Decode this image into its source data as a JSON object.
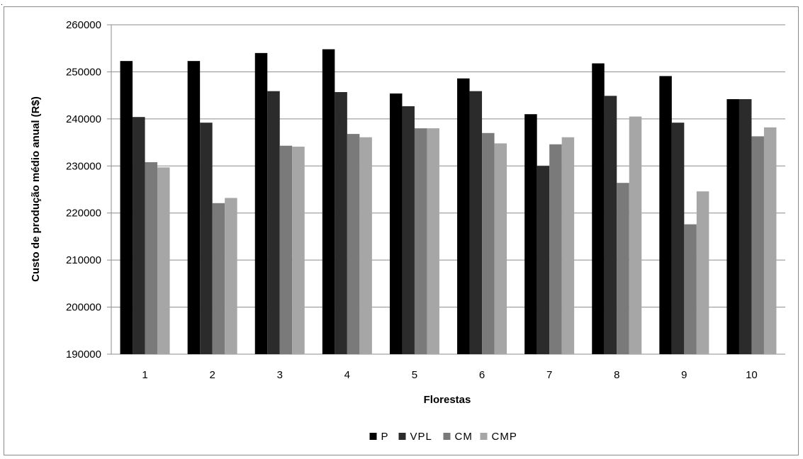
{
  "chart_data": {
    "type": "bar",
    "xlabel": "Florestas",
    "ylabel": "Custo de produção  médio anual (R$)",
    "categories": [
      "1",
      "2",
      "3",
      "4",
      "5",
      "6",
      "7",
      "8",
      "9",
      "10"
    ],
    "ylim": [
      190000,
      260000
    ],
    "yticks": [
      "190000",
      "200000",
      "210000",
      "220000",
      "230000",
      "240000",
      "250000",
      "260000"
    ],
    "grid": true,
    "legend_position": "bottom",
    "series": [
      {
        "name": "P",
        "color": "#000000",
        "values": [
          252300,
          252300,
          254000,
          254800,
          245400,
          248600,
          241000,
          251800,
          249100,
          244200
        ]
      },
      {
        "name": "VPL",
        "color": "#2b2b2b",
        "values": [
          240400,
          239200,
          245900,
          245700,
          242700,
          245900,
          230000,
          244900,
          239200,
          244200
        ]
      },
      {
        "name": "CM",
        "color": "#7a7a7a",
        "values": [
          230800,
          222100,
          234300,
          236800,
          238000,
          237000,
          234600,
          226400,
          217600,
          236300
        ]
      },
      {
        "name": "CMP",
        "color": "#a6a6a6",
        "values": [
          229700,
          223200,
          234100,
          236100,
          238000,
          234800,
          236100,
          240500,
          224600,
          238200
        ]
      }
    ]
  }
}
